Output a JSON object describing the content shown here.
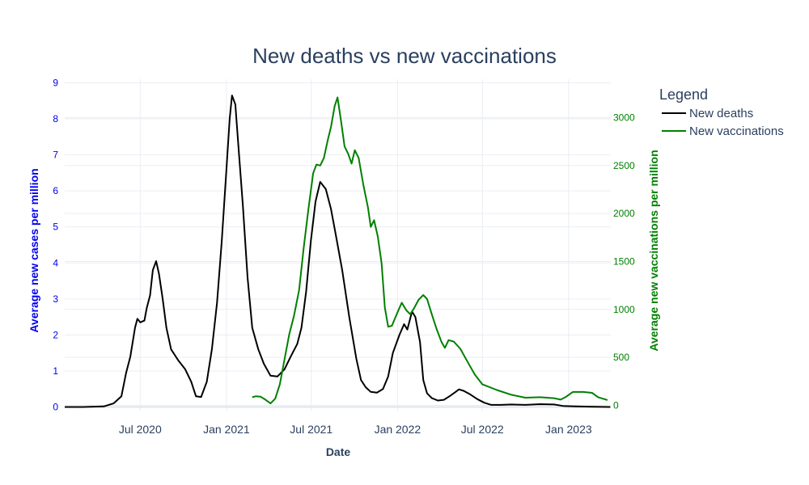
{
  "chart_data": {
    "type": "line",
    "title": "New deaths vs new vaccinations",
    "xlabel": "Date",
    "ylabel_left": "Average new cases per million",
    "ylabel_right": "Average new vaccinations per million",
    "x_range": [
      "2020-01-22",
      "2023-04-01"
    ],
    "y_left_range": [
      -0.1,
      9.1
    ],
    "y_right_range": [
      -55,
      3400
    ],
    "x_ticks": [
      {
        "date": "2020-07-01",
        "label": "Jul 2020"
      },
      {
        "date": "2021-01-01",
        "label": "Jan 2021"
      },
      {
        "date": "2021-07-01",
        "label": "Jul 2021"
      },
      {
        "date": "2022-01-01",
        "label": "Jan 2022"
      },
      {
        "date": "2022-07-01",
        "label": "Jul 2022"
      },
      {
        "date": "2023-01-01",
        "label": "Jan 2023"
      }
    ],
    "y_left_ticks": [
      0,
      1,
      2,
      3,
      4,
      5,
      6,
      7,
      8,
      9
    ],
    "y_right_ticks": [
      0,
      500,
      1000,
      1500,
      2000,
      2500,
      3000
    ],
    "grid": true,
    "legend": {
      "title": "Legend",
      "position": "top-right"
    },
    "series": [
      {
        "name": "New deaths",
        "axis": "left",
        "color": "#000000",
        "points": [
          [
            "2020-01-22",
            0.0
          ],
          [
            "2020-03-01",
            0.0
          ],
          [
            "2020-04-15",
            0.02
          ],
          [
            "2020-05-05",
            0.1
          ],
          [
            "2020-05-22",
            0.3
          ],
          [
            "2020-06-01",
            0.95
          ],
          [
            "2020-06-10",
            1.4
          ],
          [
            "2020-06-20",
            2.2
          ],
          [
            "2020-06-25",
            2.45
          ],
          [
            "2020-07-01",
            2.35
          ],
          [
            "2020-07-10",
            2.4
          ],
          [
            "2020-07-15",
            2.75
          ],
          [
            "2020-07-22",
            3.1
          ],
          [
            "2020-07-28",
            3.8
          ],
          [
            "2020-08-04",
            4.05
          ],
          [
            "2020-08-10",
            3.7
          ],
          [
            "2020-08-18",
            3.0
          ],
          [
            "2020-08-26",
            2.2
          ],
          [
            "2020-09-05",
            1.6
          ],
          [
            "2020-09-20",
            1.3
          ],
          [
            "2020-10-05",
            1.05
          ],
          [
            "2020-10-18",
            0.7
          ],
          [
            "2020-10-28",
            0.3
          ],
          [
            "2020-11-08",
            0.28
          ],
          [
            "2020-11-20",
            0.7
          ],
          [
            "2020-12-01",
            1.6
          ],
          [
            "2020-12-12",
            2.9
          ],
          [
            "2020-12-22",
            4.6
          ],
          [
            "2021-01-01",
            6.6
          ],
          [
            "2021-01-08",
            8.0
          ],
          [
            "2021-01-13",
            8.65
          ],
          [
            "2021-01-20",
            8.4
          ],
          [
            "2021-01-28",
            7.0
          ],
          [
            "2021-02-05",
            5.6
          ],
          [
            "2021-02-15",
            3.6
          ],
          [
            "2021-02-25",
            2.2
          ],
          [
            "2021-03-10",
            1.6
          ],
          [
            "2021-03-22",
            1.2
          ],
          [
            "2021-04-05",
            0.87
          ],
          [
            "2021-04-20",
            0.85
          ],
          [
            "2021-05-05",
            1.05
          ],
          [
            "2021-05-18",
            1.4
          ],
          [
            "2021-06-01",
            1.75
          ],
          [
            "2021-06-10",
            2.2
          ],
          [
            "2021-06-20",
            3.2
          ],
          [
            "2021-06-30",
            4.6
          ],
          [
            "2021-07-10",
            5.7
          ],
          [
            "2021-07-20",
            6.25
          ],
          [
            "2021-08-01",
            6.05
          ],
          [
            "2021-08-12",
            5.5
          ],
          [
            "2021-08-22",
            4.8
          ],
          [
            "2021-09-05",
            3.8
          ],
          [
            "2021-09-20",
            2.5
          ],
          [
            "2021-10-05",
            1.35
          ],
          [
            "2021-10-15",
            0.75
          ],
          [
            "2021-10-25",
            0.55
          ],
          [
            "2021-11-05",
            0.42
          ],
          [
            "2021-11-18",
            0.4
          ],
          [
            "2021-12-01",
            0.5
          ],
          [
            "2021-12-12",
            0.85
          ],
          [
            "2021-12-22",
            1.5
          ],
          [
            "2022-01-05",
            2.0
          ],
          [
            "2022-01-15",
            2.3
          ],
          [
            "2022-01-22",
            2.15
          ],
          [
            "2022-02-01",
            2.65
          ],
          [
            "2022-02-08",
            2.5
          ],
          [
            "2022-02-18",
            1.8
          ],
          [
            "2022-02-25",
            0.75
          ],
          [
            "2022-03-05",
            0.38
          ],
          [
            "2022-03-15",
            0.25
          ],
          [
            "2022-03-28",
            0.18
          ],
          [
            "2022-04-10",
            0.2
          ],
          [
            "2022-04-22",
            0.3
          ],
          [
            "2022-05-05",
            0.42
          ],
          [
            "2022-05-12",
            0.49
          ],
          [
            "2022-05-22",
            0.45
          ],
          [
            "2022-06-05",
            0.35
          ],
          [
            "2022-06-20",
            0.22
          ],
          [
            "2022-07-05",
            0.12
          ],
          [
            "2022-07-20",
            0.06
          ],
          [
            "2022-08-10",
            0.06
          ],
          [
            "2022-09-01",
            0.07
          ],
          [
            "2022-10-01",
            0.06
          ],
          [
            "2022-11-01",
            0.08
          ],
          [
            "2022-12-01",
            0.07
          ],
          [
            "2022-12-20",
            0.03
          ],
          [
            "2023-01-15",
            0.02
          ],
          [
            "2023-02-15",
            0.01
          ],
          [
            "2023-03-31",
            0.0
          ]
        ]
      },
      {
        "name": "New vaccinations",
        "axis": "right",
        "color": "#008000",
        "points": [
          [
            "2021-02-25",
            85
          ],
          [
            "2021-03-05",
            95
          ],
          [
            "2021-03-15",
            90
          ],
          [
            "2021-03-25",
            60
          ],
          [
            "2021-04-05",
            20
          ],
          [
            "2021-04-15",
            70
          ],
          [
            "2021-04-25",
            220
          ],
          [
            "2021-05-05",
            480
          ],
          [
            "2021-05-15",
            740
          ],
          [
            "2021-05-25",
            930
          ],
          [
            "2021-06-05",
            1200
          ],
          [
            "2021-06-15",
            1650
          ],
          [
            "2021-06-25",
            2050
          ],
          [
            "2021-07-05",
            2420
          ],
          [
            "2021-07-12",
            2510
          ],
          [
            "2021-07-20",
            2500
          ],
          [
            "2021-07-28",
            2580
          ],
          [
            "2021-08-05",
            2760
          ],
          [
            "2021-08-12",
            2900
          ],
          [
            "2021-08-20",
            3120
          ],
          [
            "2021-08-26",
            3210
          ],
          [
            "2021-09-02",
            2980
          ],
          [
            "2021-09-10",
            2700
          ],
          [
            "2021-09-18",
            2620
          ],
          [
            "2021-09-25",
            2520
          ],
          [
            "2021-10-02",
            2660
          ],
          [
            "2021-10-10",
            2580
          ],
          [
            "2021-10-20",
            2300
          ],
          [
            "2021-10-30",
            2060
          ],
          [
            "2021-11-05",
            1860
          ],
          [
            "2021-11-12",
            1930
          ],
          [
            "2021-11-20",
            1760
          ],
          [
            "2021-11-28",
            1480
          ],
          [
            "2021-12-05",
            1020
          ],
          [
            "2021-12-12",
            820
          ],
          [
            "2021-12-20",
            830
          ],
          [
            "2022-01-01",
            970
          ],
          [
            "2022-01-10",
            1070
          ],
          [
            "2022-01-20",
            990
          ],
          [
            "2022-01-28",
            950
          ],
          [
            "2022-02-05",
            1010
          ],
          [
            "2022-02-15",
            1100
          ],
          [
            "2022-02-25",
            1150
          ],
          [
            "2022-03-05",
            1110
          ],
          [
            "2022-03-15",
            950
          ],
          [
            "2022-03-25",
            800
          ],
          [
            "2022-04-05",
            660
          ],
          [
            "2022-04-12",
            600
          ],
          [
            "2022-04-20",
            680
          ],
          [
            "2022-05-01",
            665
          ],
          [
            "2022-05-15",
            590
          ],
          [
            "2022-06-01",
            440
          ],
          [
            "2022-06-15",
            320
          ],
          [
            "2022-07-01",
            220
          ],
          [
            "2022-08-01",
            160
          ],
          [
            "2022-09-01",
            110
          ],
          [
            "2022-10-01",
            80
          ],
          [
            "2022-11-01",
            85
          ],
          [
            "2022-12-01",
            75
          ],
          [
            "2022-12-15",
            60
          ],
          [
            "2022-12-25",
            85
          ],
          [
            "2023-01-10",
            140
          ],
          [
            "2023-02-01",
            140
          ],
          [
            "2023-02-20",
            130
          ],
          [
            "2023-03-05",
            85
          ],
          [
            "2023-03-25",
            55
          ]
        ]
      }
    ]
  }
}
